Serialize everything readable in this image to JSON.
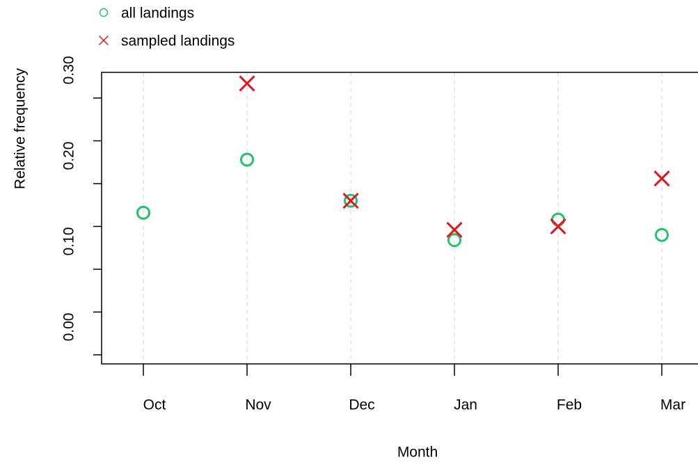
{
  "chart_data": {
    "type": "scatter",
    "x_label": "Month",
    "y_label": "Relative frequency",
    "categories": [
      "Oct",
      "Nov",
      "Dec",
      "Jan",
      "Feb",
      "Mar"
    ],
    "series": [
      {
        "name": "all landings",
        "color": "#1ec46b",
        "marker": "circle",
        "values": [
          0.166,
          0.228,
          0.18,
          0.134,
          0.158,
          0.14
        ]
      },
      {
        "name": "sampled landings",
        "color": "#e8141c",
        "marker": "cross",
        "values": [
          null,
          0.317,
          0.18,
          0.146,
          0.15,
          0.206
        ]
      }
    ],
    "ylim": [
      -0.0106,
      0.33
    ],
    "yticks": [
      {
        "value": 0,
        "label": "0.00"
      },
      {
        "value": 0.05,
        "label": null
      },
      {
        "value": 0.1,
        "label": "0.10"
      },
      {
        "value": 0.15,
        "label": null
      },
      {
        "value": 0.2,
        "label": "0.20"
      },
      {
        "value": 0.25,
        "label": null
      },
      {
        "value": 0.3,
        "label": "0.30"
      }
    ],
    "grid": true
  }
}
